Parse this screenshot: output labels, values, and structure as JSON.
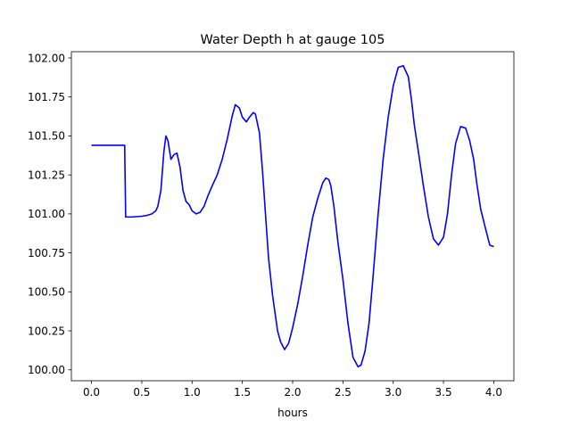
{
  "chart_data": {
    "type": "line",
    "title": "Water Depth h at gauge 105",
    "xlabel": "hours",
    "ylabel": "",
    "xlim": [
      -0.2,
      4.2
    ],
    "ylim": [
      99.93,
      102.04
    ],
    "x_ticks": [
      0.0,
      0.5,
      1.0,
      1.5,
      2.0,
      2.5,
      3.0,
      3.5,
      4.0
    ],
    "x_tick_labels": [
      "0.0",
      "0.5",
      "1.0",
      "1.5",
      "2.0",
      "2.5",
      "3.0",
      "3.5",
      "4.0"
    ],
    "y_ticks": [
      100.0,
      100.25,
      100.5,
      100.75,
      101.0,
      101.25,
      101.5,
      101.75,
      102.0
    ],
    "y_tick_labels": [
      "100.00",
      "100.25",
      "100.50",
      "100.75",
      "101.00",
      "101.25",
      "101.50",
      "101.75",
      "102.00"
    ],
    "grid": false,
    "series": [
      {
        "color": "#0000ff",
        "x": [
          0.0,
          0.1,
          0.2,
          0.33,
          0.335,
          0.34,
          0.4,
          0.5,
          0.55,
          0.6,
          0.64,
          0.66,
          0.69,
          0.72,
          0.74,
          0.76,
          0.79,
          0.82,
          0.85,
          0.88,
          0.91,
          0.94,
          0.97,
          1.0,
          1.04,
          1.08,
          1.12,
          1.16,
          1.2,
          1.25,
          1.3,
          1.35,
          1.4,
          1.43,
          1.47,
          1.5,
          1.54,
          1.57,
          1.61,
          1.63,
          1.67,
          1.7,
          1.73,
          1.76,
          1.8,
          1.85,
          1.88,
          1.92,
          1.96,
          2.0,
          2.05,
          2.1,
          2.15,
          2.2,
          2.25,
          2.3,
          2.33,
          2.36,
          2.38,
          2.41,
          2.45,
          2.5,
          2.55,
          2.6,
          2.65,
          2.68,
          2.72,
          2.76,
          2.8,
          2.85,
          2.9,
          2.95,
          3.0,
          3.05,
          3.1,
          3.15,
          3.18,
          3.21,
          3.25,
          3.3,
          3.35,
          3.4,
          3.45,
          3.5,
          3.54,
          3.58,
          3.62,
          3.67,
          3.72,
          3.76,
          3.8,
          3.83,
          3.87,
          3.92,
          3.96,
          4.0
        ],
        "y": [
          101.44,
          101.44,
          101.44,
          101.44,
          101.2,
          100.98,
          100.98,
          100.985,
          100.99,
          101.0,
          101.02,
          101.05,
          101.15,
          101.4,
          101.5,
          101.47,
          101.35,
          101.38,
          101.39,
          101.3,
          101.15,
          101.08,
          101.06,
          101.02,
          101.0,
          101.01,
          101.05,
          101.12,
          101.18,
          101.25,
          101.35,
          101.48,
          101.63,
          101.7,
          101.68,
          101.62,
          101.59,
          101.62,
          101.65,
          101.64,
          101.52,
          101.28,
          101.0,
          100.72,
          100.48,
          100.25,
          100.18,
          100.13,
          100.17,
          100.27,
          100.42,
          100.6,
          100.8,
          100.98,
          101.1,
          101.2,
          101.23,
          101.22,
          101.18,
          101.05,
          100.82,
          100.58,
          100.3,
          100.08,
          100.02,
          100.03,
          100.12,
          100.3,
          100.6,
          101.0,
          101.35,
          101.62,
          101.82,
          101.94,
          101.95,
          101.88,
          101.74,
          101.57,
          101.4,
          101.18,
          100.98,
          100.84,
          100.8,
          100.85,
          101.0,
          101.25,
          101.45,
          101.56,
          101.55,
          101.47,
          101.35,
          101.2,
          101.03,
          100.9,
          100.8,
          100.79
        ]
      }
    ]
  }
}
